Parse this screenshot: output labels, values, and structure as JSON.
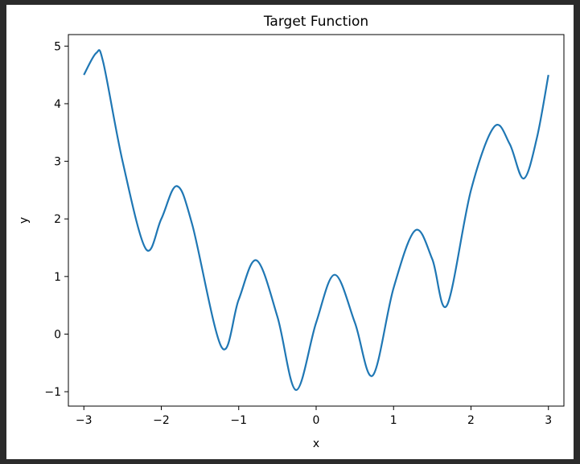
{
  "chart_data": {
    "type": "line",
    "title": "Target Function",
    "xlabel": "x",
    "ylabel": "y",
    "xlim": [
      -3.2,
      3.2
    ],
    "ylim": [
      -1.25,
      5.2
    ],
    "xticks": [
      -3,
      -2,
      -1,
      0,
      1,
      2,
      3
    ],
    "xtick_labels": [
      "−3",
      "−2",
      "−1",
      "0",
      "1",
      "2",
      "3"
    ],
    "yticks": [
      -1,
      0,
      1,
      2,
      3,
      4,
      5
    ],
    "ytick_labels": [
      "−1",
      "0",
      "1",
      "2",
      "3",
      "4",
      "5"
    ],
    "grid": false,
    "series": [
      {
        "color": "#1f77b4",
        "x": [
          -3.0,
          -2.84,
          -2.75,
          -2.5,
          -2.2,
          -2.0,
          -1.8,
          -1.6,
          -1.22,
          -1.0,
          -0.77,
          -0.5,
          -0.26,
          0.0,
          0.24,
          0.5,
          0.73,
          1.0,
          1.28,
          1.5,
          1.69,
          2.0,
          2.3,
          2.5,
          2.68,
          2.85,
          3.0
        ],
        "y": [
          4.5,
          4.88,
          4.72,
          3.0,
          1.48,
          2.0,
          2.57,
          1.9,
          -0.23,
          0.6,
          1.28,
          0.3,
          -0.97,
          0.2,
          1.03,
          0.2,
          -0.72,
          0.8,
          1.8,
          1.3,
          0.5,
          2.5,
          3.6,
          3.3,
          2.7,
          3.4,
          4.5
        ]
      }
    ]
  }
}
